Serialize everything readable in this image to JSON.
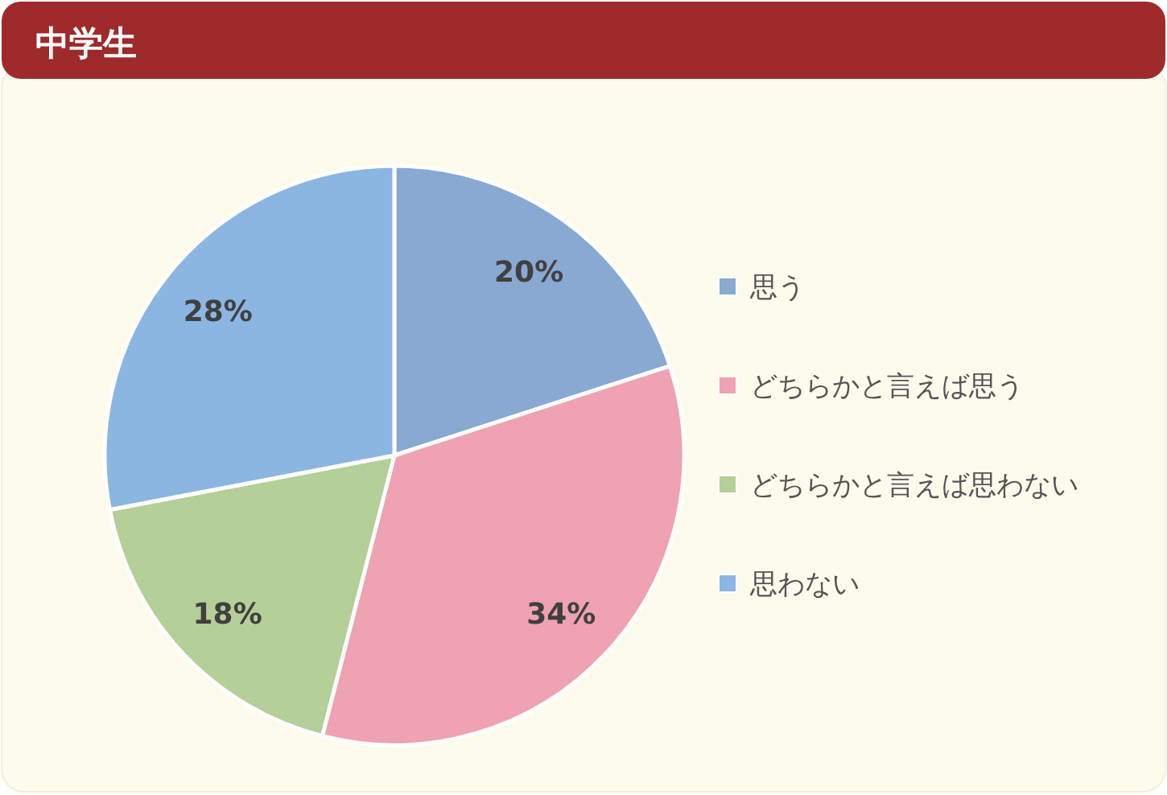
{
  "chart_data": {
    "type": "pie",
    "title": "中学生",
    "categories": [
      "思う",
      "どちらかと言えば思う",
      "どちらかと言えば思わない",
      "思わない"
    ],
    "values": [
      20,
      34,
      18,
      28
    ],
    "value_labels": [
      "20%",
      "34%",
      "18%",
      "28%"
    ],
    "colors": [
      "#88a9d2",
      "#efa2b2",
      "#b4cf97",
      "#8bb6e1"
    ],
    "legend": "right"
  }
}
